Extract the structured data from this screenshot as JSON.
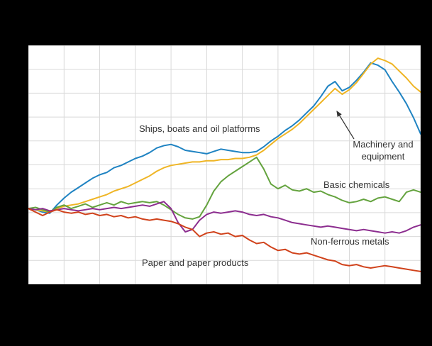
{
  "figure": {
    "background_color": "#000000",
    "plot_background_color": "#ffffff",
    "grid_color": "#d9d9d9",
    "text_color": "#333333"
  },
  "labels": {
    "ships": "Ships, boats and oil platforms",
    "machinery_line1": "Machinery and",
    "machinery_line2": "equipment",
    "basic_chemicals": "Basic chemicals",
    "non_ferrous": "Non-ferrous metals",
    "paper": "Paper and paper products"
  },
  "chart_data": {
    "type": "line",
    "title": "",
    "xlabel": "",
    "ylabel": "",
    "ylim": [
      35,
      240
    ],
    "grid": true,
    "grid_x_divisions": 11,
    "grid_y_divisions": 10,
    "legend_position": "inline-annotations",
    "series": [
      {
        "name": "Ships, boats and oil platforms",
        "color": "#1f83c2",
        "values": [
          100,
          99,
          97,
          96,
          103,
          109,
          114,
          118,
          122,
          126,
          129,
          131,
          135,
          137,
          140,
          143,
          145,
          148,
          152,
          154,
          155,
          153,
          150,
          149,
          148,
          147,
          149,
          151,
          150,
          149,
          148,
          148,
          149,
          153,
          158,
          162,
          167,
          171,
          176,
          182,
          188,
          196,
          205,
          209,
          201,
          204,
          210,
          217,
          225,
          223,
          219,
          209,
          200,
          190,
          178,
          164
        ]
      },
      {
        "name": "Machinery and equipment",
        "color": "#efb525",
        "values": [
          100,
          99,
          98,
          97,
          100,
          102,
          103,
          104,
          106,
          108,
          110,
          112,
          115,
          117,
          119,
          122,
          125,
          128,
          132,
          135,
          137,
          138,
          139,
          140,
          140,
          141,
          141,
          142,
          142,
          143,
          143,
          144,
          146,
          150,
          155,
          160,
          164,
          168,
          173,
          179,
          185,
          191,
          197,
          203,
          198,
          202,
          208,
          216,
          224,
          229,
          227,
          224,
          218,
          212,
          205,
          200
        ]
      },
      {
        "name": "Basic chemicals",
        "color": "#64a33e",
        "values": [
          100,
          101,
          99,
          97,
          101,
          103,
          100,
          102,
          104,
          101,
          103,
          105,
          103,
          106,
          104,
          105,
          106,
          105,
          106,
          103,
          99,
          95,
          92,
          91,
          93,
          103,
          115,
          123,
          128,
          132,
          136,
          140,
          144,
          134,
          121,
          117,
          120,
          116,
          115,
          117,
          114,
          115,
          112,
          110,
          107,
          105,
          106,
          108,
          106,
          109,
          110,
          108,
          106,
          114,
          116,
          114
        ]
      },
      {
        "name": "Non-ferrous metals",
        "color": "#8c2d8f",
        "values": [
          100,
          99,
          100,
          98,
          99,
          100,
          99,
          98,
          99,
          100,
          99,
          100,
          101,
          100,
          101,
          102,
          103,
          102,
          104,
          106,
          100,
          88,
          80,
          82,
          90,
          95,
          97,
          96,
          97,
          98,
          97,
          95,
          94,
          95,
          93,
          92,
          90,
          88,
          87,
          86,
          85,
          84,
          85,
          84,
          83,
          82,
          81,
          82,
          81,
          80,
          79,
          80,
          79,
          81,
          84,
          86
        ]
      },
      {
        "name": "Paper and paper products",
        "color": "#d0421b",
        "values": [
          100,
          97,
          94,
          97,
          99,
          97,
          96,
          97,
          95,
          96,
          94,
          95,
          93,
          94,
          92,
          93,
          91,
          90,
          91,
          90,
          89,
          87,
          84,
          82,
          76,
          79,
          80,
          78,
          79,
          76,
          77,
          73,
          70,
          71,
          67,
          64,
          65,
          62,
          61,
          62,
          60,
          58,
          56,
          55,
          52,
          51,
          52,
          50,
          49,
          50,
          51,
          50,
          49,
          48,
          47,
          46
        ]
      }
    ],
    "annotations": [
      {
        "text": "Machinery and equipment",
        "points_to_series": "Machinery and equipment"
      }
    ]
  }
}
